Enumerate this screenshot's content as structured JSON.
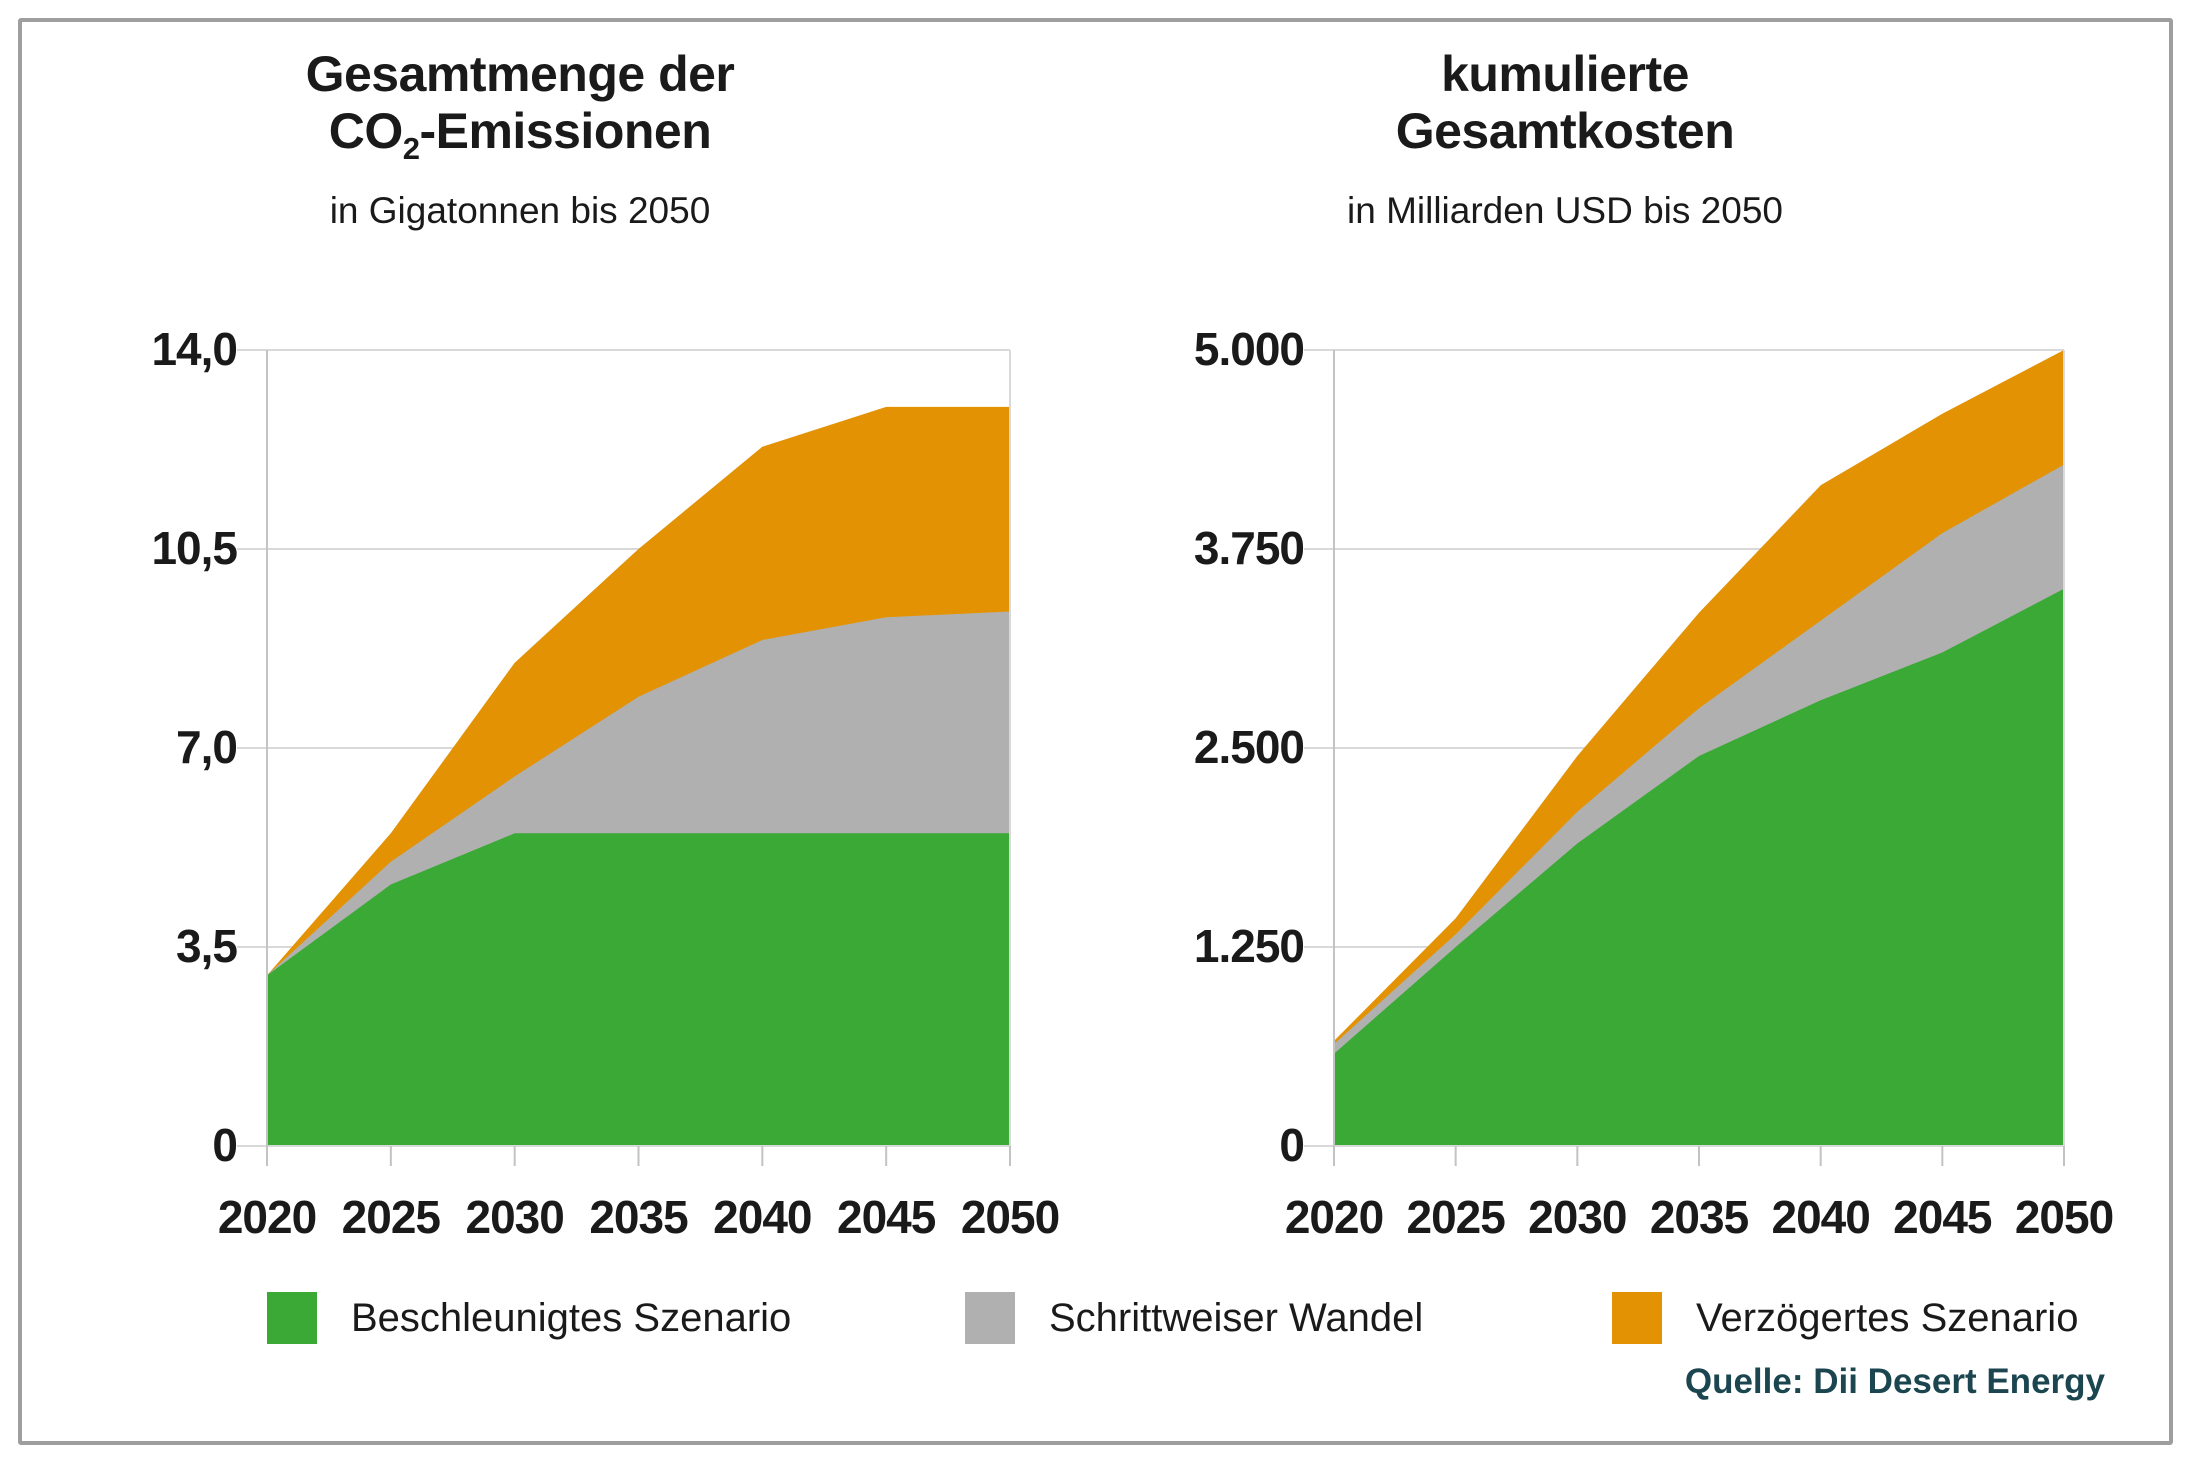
{
  "page": {
    "background": "#ffffff",
    "frame_border_color": "#9e9e9e"
  },
  "colors": {
    "green": "#3aa935",
    "gray": "#b0b0b0",
    "orange": "#e39204",
    "grid": "#d9d9d9",
    "axis": "#c3c3c3",
    "title_text": "#1a1a1a",
    "source_text": "#1b4650"
  },
  "charts": [
    {
      "title_line1": "Gesamtmenge der",
      "title_co": "CO",
      "title_sub": "2",
      "title_rest": "-Emissionen",
      "subtitle": "in Gigatonnen bis 2050"
    },
    {
      "title_line1": "kumulierte",
      "title_line2": "Gesamtkosten",
      "subtitle": "in Milliarden USD bis 2050"
    }
  ],
  "chart_data": [
    {
      "type": "area",
      "title": "Gesamtmenge der CO2-Emissionen",
      "subtitle": "in Gigatonnen bis 2050",
      "unit": "Gigatonnen CO2",
      "x": [
        2020,
        2025,
        2030,
        2035,
        2040,
        2045,
        2050
      ],
      "x_labels": [
        "2020",
        "2025",
        "2030",
        "2035",
        "2040",
        "2045",
        "2050"
      ],
      "series": [
        {
          "name": "Beschleunigtes Szenario",
          "color": "#3aa935",
          "values": [
            3.0,
            4.6,
            5.5,
            5.5,
            5.5,
            5.5,
            5.5
          ]
        },
        {
          "name": "Schrittweiser Wandel",
          "color": "#b0b0b0",
          "values": [
            3.0,
            5.0,
            6.5,
            7.9,
            8.9,
            9.3,
            9.4
          ]
        },
        {
          "name": "Verzögertes Szenario",
          "color": "#e39204",
          "values": [
            3.0,
            5.5,
            8.5,
            10.5,
            12.3,
            13.0,
            13.0
          ]
        }
      ],
      "ylim": [
        0,
        14
      ],
      "y_ticks": [
        0,
        3.5,
        7,
        10.5,
        14
      ],
      "y_tick_labels": [
        "0",
        "3,5",
        "7,0",
        "10,5",
        "14,0"
      ],
      "grid": "horizontal",
      "legend_position": "bottom"
    },
    {
      "type": "area",
      "title": "kumulierte Gesamtkosten",
      "subtitle": "in Milliarden USD bis 2050",
      "unit": "Milliarden USD",
      "x": [
        2020,
        2025,
        2030,
        2035,
        2040,
        2045,
        2050
      ],
      "x_labels": [
        "2020",
        "2025",
        "2030",
        "2035",
        "2040",
        "2045",
        "2050"
      ],
      "series": [
        {
          "name": "Beschleunigtes Szenario",
          "color": "#3aa935",
          "values": [
            580,
            1250,
            1900,
            2450,
            2800,
            3100,
            3500
          ]
        },
        {
          "name": "Schrittweiser Wandel",
          "color": "#b0b0b0",
          "values": [
            640,
            1330,
            2100,
            2750,
            3300,
            3850,
            4280
          ]
        },
        {
          "name": "Verzögertes Szenario",
          "color": "#e39204",
          "values": [
            660,
            1430,
            2450,
            3350,
            4150,
            4600,
            5000
          ]
        }
      ],
      "ylim": [
        0,
        5000
      ],
      "y_ticks": [
        0,
        1250,
        2500,
        3750,
        5000
      ],
      "y_tick_labels": [
        "0",
        "1.250",
        "2.500",
        "3.750",
        "5.000"
      ],
      "grid": "horizontal",
      "legend_position": "bottom"
    }
  ],
  "legend": {
    "items": [
      {
        "label": "Beschleunigtes Szenario",
        "color": "#3aa935"
      },
      {
        "label": "Schrittweiser Wandel",
        "color": "#b0b0b0"
      },
      {
        "label": "Verzögertes Szenario",
        "color": "#e39204"
      }
    ]
  },
  "source": {
    "label": "Quelle: Dii Desert Energy"
  }
}
